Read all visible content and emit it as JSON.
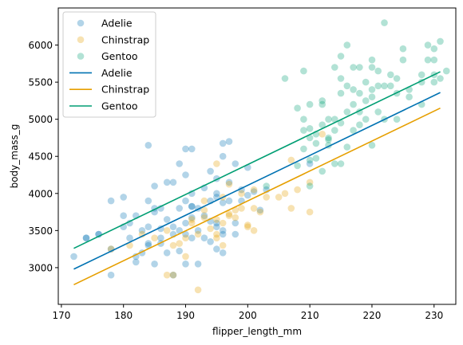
{
  "chart_data": {
    "type": "scatter",
    "xlabel": "flipper_length_mm",
    "ylabel": "body_mass_g",
    "xlim": [
      169.5,
      233.5
    ],
    "ylim": [
      2505,
      6500
    ],
    "xticks": [
      170,
      180,
      190,
      200,
      210,
      220,
      230
    ],
    "yticks": [
      3000,
      3500,
      4000,
      4500,
      5000,
      5500,
      6000
    ],
    "grid": false,
    "legend_placement": "upper-left",
    "legend": [
      {
        "label": "Adelie",
        "kind": "point",
        "color": "#0072b2"
      },
      {
        "label": "Chinstrap",
        "kind": "point",
        "color": "#e69f00"
      },
      {
        "label": "Gentoo",
        "kind": "point",
        "color": "#009e73"
      },
      {
        "label": "Adelie",
        "kind": "line",
        "color": "#0072b2"
      },
      {
        "label": "Chinstrap",
        "kind": "line",
        "color": "#e69f00"
      },
      {
        "label": "Gentoo",
        "kind": "line",
        "color": "#009e73"
      }
    ],
    "scatter_series": [
      {
        "name": "Adelie",
        "color": "#0072b2",
        "points": [
          [
            172,
            3150
          ],
          [
            174,
            3400
          ],
          [
            176,
            3450
          ],
          [
            178,
            2900
          ],
          [
            178,
            3250
          ],
          [
            178,
            3900
          ],
          [
            180,
            3550
          ],
          [
            180,
            3700
          ],
          [
            180,
            3950
          ],
          [
            181,
            3600
          ],
          [
            181,
            3400
          ],
          [
            182,
            3150
          ],
          [
            182,
            3700
          ],
          [
            183,
            3200
          ],
          [
            183,
            3500
          ],
          [
            184,
            3900
          ],
          [
            184,
            4650
          ],
          [
            184,
            3325
          ],
          [
            184,
            3550
          ],
          [
            185,
            3800
          ],
          [
            185,
            4100
          ],
          [
            185,
            3050
          ],
          [
            186,
            3400
          ],
          [
            186,
            3800
          ],
          [
            186,
            3525
          ],
          [
            187,
            3200
          ],
          [
            187,
            3650
          ],
          [
            187,
            4150
          ],
          [
            188,
            3450
          ],
          [
            188,
            2900
          ],
          [
            188,
            3550
          ],
          [
            189,
            3500
          ],
          [
            189,
            4400
          ],
          [
            189,
            3225
          ],
          [
            189,
            3800
          ],
          [
            190,
            4250
          ],
          [
            190,
            3600
          ],
          [
            190,
            3900
          ],
          [
            190,
            3450
          ],
          [
            190,
            3050
          ],
          [
            190,
            4600
          ],
          [
            191,
            3675
          ],
          [
            191,
            3400
          ],
          [
            191,
            4000
          ],
          [
            191,
            3825
          ],
          [
            191,
            4600
          ],
          [
            192,
            3500
          ],
          [
            192,
            3800
          ],
          [
            192,
            3050
          ],
          [
            193,
            3400
          ],
          [
            193,
            4075
          ],
          [
            193,
            3700
          ],
          [
            194,
            3350
          ],
          [
            194,
            4300
          ],
          [
            194,
            3900
          ],
          [
            194,
            3625
          ],
          [
            195,
            4200
          ],
          [
            195,
            3250
          ],
          [
            195,
            3600
          ],
          [
            195,
            3950
          ],
          [
            195,
            3550
          ],
          [
            196,
            3200
          ],
          [
            196,
            3500
          ],
          [
            196,
            4675
          ],
          [
            196,
            3875
          ],
          [
            196,
            3450
          ],
          [
            197,
            3900
          ],
          [
            197,
            4700
          ],
          [
            197,
            4150
          ],
          [
            198,
            3600
          ],
          [
            198,
            4400
          ],
          [
            198,
            3450
          ],
          [
            199,
            4050
          ],
          [
            199,
            3900
          ],
          [
            200,
            3975
          ],
          [
            200,
            4350
          ],
          [
            201,
            4025
          ],
          [
            202,
            3775
          ],
          [
            203,
            4050
          ],
          [
            210,
            4400
          ],
          [
            186,
            3325
          ],
          [
            182,
            3075
          ],
          [
            185,
            3750
          ],
          [
            184,
            3300
          ],
          [
            176,
            3450
          ],
          [
            174,
            3400
          ],
          [
            196,
            4500
          ],
          [
            188,
            4150
          ],
          [
            191,
            3825
          ],
          [
            195,
            4000
          ]
        ]
      },
      {
        "name": "Chinstrap",
        "color": "#e69f00",
        "points": [
          [
            178,
            3250
          ],
          [
            181,
            3300
          ],
          [
            183,
            3450
          ],
          [
            185,
            3400
          ],
          [
            187,
            2900
          ],
          [
            187,
            3500
          ],
          [
            188,
            3300
          ],
          [
            188,
            2900
          ],
          [
            189,
            3325
          ],
          [
            190,
            3400
          ],
          [
            190,
            3150
          ],
          [
            191,
            3650
          ],
          [
            191,
            3600
          ],
          [
            192,
            3450
          ],
          [
            193,
            3900
          ],
          [
            193,
            3775
          ],
          [
            193,
            3675
          ],
          [
            194,
            3525
          ],
          [
            195,
            3650
          ],
          [
            195,
            3400
          ],
          [
            195,
            4400
          ],
          [
            195,
            3450
          ],
          [
            196,
            3950
          ],
          [
            196,
            3600
          ],
          [
            197,
            3700
          ],
          [
            197,
            4125
          ],
          [
            197,
            3725
          ],
          [
            198,
            3675
          ],
          [
            198,
            3775
          ],
          [
            199,
            3800
          ],
          [
            200,
            3550
          ],
          [
            200,
            3575
          ],
          [
            201,
            3800
          ],
          [
            201,
            4050
          ],
          [
            201,
            3500
          ],
          [
            202,
            3750
          ],
          [
            203,
            3950
          ],
          [
            205,
            3950
          ],
          [
            206,
            4000
          ],
          [
            207,
            4450
          ],
          [
            207,
            3800
          ],
          [
            208,
            4050
          ],
          [
            210,
            4150
          ],
          [
            210,
            3750
          ],
          [
            212,
            4800
          ],
          [
            192,
            2700
          ],
          [
            196,
            3300
          ],
          [
            199,
            4000
          ]
        ]
      },
      {
        "name": "Gentoo",
        "color": "#009e73",
        "points": [
          [
            203,
            4100
          ],
          [
            208,
            4375
          ],
          [
            208,
            5150
          ],
          [
            209,
            4600
          ],
          [
            210,
            4450
          ],
          [
            210,
            4875
          ],
          [
            210,
            4100
          ],
          [
            210,
            4750
          ],
          [
            211,
            4675
          ],
          [
            211,
            4475
          ],
          [
            212,
            4300
          ],
          [
            212,
            4925
          ],
          [
            212,
            5250
          ],
          [
            213,
            4725
          ],
          [
            213,
            4650
          ],
          [
            213,
            4750
          ],
          [
            214,
            4850
          ],
          [
            214,
            5000
          ],
          [
            214,
            5700
          ],
          [
            215,
            5550
          ],
          [
            215,
            4400
          ],
          [
            215,
            5350
          ],
          [
            215,
            4950
          ],
          [
            216,
            5100
          ],
          [
            216,
            4625
          ],
          [
            217,
            5200
          ],
          [
            217,
            5700
          ],
          [
            217,
            4850
          ],
          [
            218,
            5100
          ],
          [
            218,
            5350
          ],
          [
            218,
            4925
          ],
          [
            219,
            5500
          ],
          [
            219,
            5250
          ],
          [
            220,
            5300
          ],
          [
            220,
            5700
          ],
          [
            220,
            4650
          ],
          [
            221,
            5100
          ],
          [
            221,
            5450
          ],
          [
            222,
            6300
          ],
          [
            222,
            5450
          ],
          [
            223,
            5600
          ],
          [
            224,
            5550
          ],
          [
            224,
            5350
          ],
          [
            225,
            5800
          ],
          [
            226,
            5400
          ],
          [
            228,
            5600
          ],
          [
            228,
            5200
          ],
          [
            229,
            5800
          ],
          [
            230,
            5950
          ],
          [
            230,
            5600
          ],
          [
            230,
            5800
          ],
          [
            231,
            6050
          ],
          [
            231,
            5550
          ],
          [
            232,
            5650
          ],
          [
            209,
            5000
          ],
          [
            209,
            4850
          ],
          [
            211,
            4800
          ],
          [
            212,
            5200
          ],
          [
            213,
            5000
          ],
          [
            214,
            4400
          ],
          [
            215,
            5850
          ],
          [
            216,
            5450
          ],
          [
            217,
            5400
          ],
          [
            218,
            5700
          ],
          [
            219,
            5000
          ],
          [
            220,
            5400
          ],
          [
            221,
            5650
          ],
          [
            222,
            5000
          ],
          [
            223,
            5450
          ],
          [
            224,
            5000
          ],
          [
            225,
            5950
          ],
          [
            226,
            5300
          ],
          [
            228,
            5500
          ],
          [
            229,
            6000
          ],
          [
            230,
            5500
          ],
          [
            206,
            5550
          ],
          [
            209,
            5650
          ],
          [
            210,
            5200
          ],
          [
            216,
            6000
          ],
          [
            220,
            5800
          ]
        ]
      }
    ],
    "line_series": [
      {
        "name": "Adelie",
        "color": "#0072b2",
        "x": [
          172,
          231
        ],
        "y": [
          2980,
          5360
        ]
      },
      {
        "name": "Chinstrap",
        "color": "#e69f00",
        "x": [
          172,
          231
        ],
        "y": [
          2770,
          5150
        ]
      },
      {
        "name": "Gentoo",
        "color": "#009e73",
        "x": [
          172,
          231
        ],
        "y": [
          3260,
          5640
        ]
      }
    ]
  }
}
